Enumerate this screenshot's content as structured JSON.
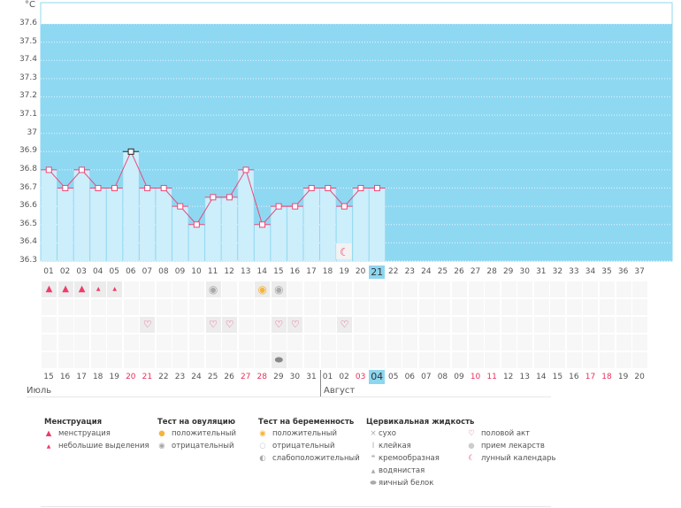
{
  "chart_data": {
    "type": "line",
    "unit": "°C",
    "ylim": [
      36.3,
      37.6
    ],
    "y_ticks": [
      "37.6",
      "37.5",
      "37.4",
      "37.3",
      "37.2",
      "37.1",
      "37",
      "36.9",
      "36.8",
      "36.7",
      "36.6",
      "36.5",
      "36.4",
      "36.3"
    ],
    "cycle_days": [
      "01",
      "02",
      "03",
      "04",
      "05",
      "06",
      "07",
      "08",
      "09",
      "10",
      "11",
      "12",
      "13",
      "14",
      "15",
      "16",
      "17",
      "18",
      "19",
      "20",
      "21",
      "22",
      "23",
      "24",
      "25",
      "26",
      "27",
      "28",
      "29",
      "30",
      "31",
      "32",
      "33",
      "34",
      "35",
      "36",
      "37"
    ],
    "temperatures": [
      36.8,
      36.7,
      36.8,
      36.7,
      36.7,
      36.9,
      36.7,
      36.7,
      36.6,
      36.5,
      36.65,
      36.65,
      36.8,
      36.5,
      36.6,
      36.6,
      36.7,
      36.7,
      36.6,
      36.7,
      36.7
    ],
    "highlighted_point_day": "06",
    "current_day": "21",
    "grid": true,
    "colors": {
      "background": "#8fd8f2",
      "bar": "#cdeefb",
      "line": "#e84a78",
      "current": "#8dd6f0"
    }
  },
  "calendar": {
    "dates": [
      {
        "d": "15",
        "we": false
      },
      {
        "d": "16",
        "we": false
      },
      {
        "d": "17",
        "we": false
      },
      {
        "d": "18",
        "we": false
      },
      {
        "d": "19",
        "we": false
      },
      {
        "d": "20",
        "we": true
      },
      {
        "d": "21",
        "we": true
      },
      {
        "d": "22",
        "we": false
      },
      {
        "d": "23",
        "we": false
      },
      {
        "d": "24",
        "we": false
      },
      {
        "d": "25",
        "we": false
      },
      {
        "d": "26",
        "we": false
      },
      {
        "d": "27",
        "we": true
      },
      {
        "d": "28",
        "we": true
      },
      {
        "d": "29",
        "we": false
      },
      {
        "d": "30",
        "we": false
      },
      {
        "d": "31",
        "we": false
      },
      {
        "d": "01",
        "we": false
      },
      {
        "d": "02",
        "we": false
      },
      {
        "d": "03",
        "we": true
      },
      {
        "d": "04",
        "we": false
      },
      {
        "d": "05",
        "we": false
      },
      {
        "d": "06",
        "we": false
      },
      {
        "d": "07",
        "we": false
      },
      {
        "d": "08",
        "we": false
      },
      {
        "d": "09",
        "we": false
      },
      {
        "d": "10",
        "we": true
      },
      {
        "d": "11",
        "we": true
      },
      {
        "d": "12",
        "we": false
      },
      {
        "d": "13",
        "we": false
      },
      {
        "d": "14",
        "we": false
      },
      {
        "d": "15",
        "we": false
      },
      {
        "d": "16",
        "we": false
      },
      {
        "d": "17",
        "we": true
      },
      {
        "d": "18",
        "we": true
      },
      {
        "d": "19",
        "we": false
      },
      {
        "d": "20",
        "we": false
      }
    ],
    "months": [
      "Июль",
      "Август"
    ]
  },
  "events": {
    "menstruation": {
      "01": "heavy",
      "02": "heavy",
      "03": "heavy",
      "04": "light",
      "05": "light"
    },
    "ovulation_test": {
      "11": "negative",
      "14": "positive",
      "15": "negative"
    },
    "intercourse": [
      "07",
      "11",
      "12",
      "15",
      "16",
      "19"
    ],
    "cervical_fluid": {
      "15": "egg-white"
    },
    "lunar": [
      "19"
    ]
  },
  "legend": {
    "menstruation": {
      "title": "Менструация",
      "items": [
        "менструация",
        "небольшие выделения"
      ]
    },
    "ovulation": {
      "title": "Тест на овуляцию",
      "items": [
        "положительный",
        "отрицательный"
      ]
    },
    "pregnancy": {
      "title": "Тест на беременность",
      "items": [
        "положительный",
        "отрицательный",
        "слабоположительный"
      ]
    },
    "fluid": {
      "title": "Цервикальная жидкость",
      "items": [
        "сухо",
        "клейкая",
        "кремообразная",
        "водянистая",
        "яичный белок"
      ]
    },
    "other": {
      "items": [
        "половой акт",
        "прием лекарств",
        "лунный календарь"
      ]
    }
  }
}
